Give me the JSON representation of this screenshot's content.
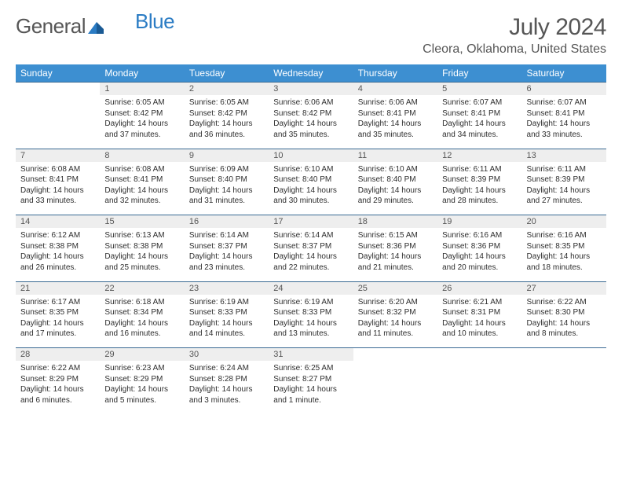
{
  "logo": {
    "text_a": "General",
    "text_b": "Blue"
  },
  "title": "July 2024",
  "location": "Cleora, Oklahoma, United States",
  "colors": {
    "header_bg": "#3d8fd1",
    "header_fg": "#ffffff",
    "daynum_bg": "#eeeeee",
    "rule": "#3a6a93",
    "text": "#2e2e2e",
    "muted": "#565656"
  },
  "weekdays": [
    "Sunday",
    "Monday",
    "Tuesday",
    "Wednesday",
    "Thursday",
    "Friday",
    "Saturday"
  ],
  "layout": {
    "first_weekday_index": 1,
    "days_in_month": 31,
    "rows": 5,
    "cols": 7
  },
  "data": [
    {
      "d": 1,
      "sr": "6:05 AM",
      "ss": "8:42 PM",
      "dl": "14 hours and 37 minutes."
    },
    {
      "d": 2,
      "sr": "6:05 AM",
      "ss": "8:42 PM",
      "dl": "14 hours and 36 minutes."
    },
    {
      "d": 3,
      "sr": "6:06 AM",
      "ss": "8:42 PM",
      "dl": "14 hours and 35 minutes."
    },
    {
      "d": 4,
      "sr": "6:06 AM",
      "ss": "8:41 PM",
      "dl": "14 hours and 35 minutes."
    },
    {
      "d": 5,
      "sr": "6:07 AM",
      "ss": "8:41 PM",
      "dl": "14 hours and 34 minutes."
    },
    {
      "d": 6,
      "sr": "6:07 AM",
      "ss": "8:41 PM",
      "dl": "14 hours and 33 minutes."
    },
    {
      "d": 7,
      "sr": "6:08 AM",
      "ss": "8:41 PM",
      "dl": "14 hours and 33 minutes."
    },
    {
      "d": 8,
      "sr": "6:08 AM",
      "ss": "8:41 PM",
      "dl": "14 hours and 32 minutes."
    },
    {
      "d": 9,
      "sr": "6:09 AM",
      "ss": "8:40 PM",
      "dl": "14 hours and 31 minutes."
    },
    {
      "d": 10,
      "sr": "6:10 AM",
      "ss": "8:40 PM",
      "dl": "14 hours and 30 minutes."
    },
    {
      "d": 11,
      "sr": "6:10 AM",
      "ss": "8:40 PM",
      "dl": "14 hours and 29 minutes."
    },
    {
      "d": 12,
      "sr": "6:11 AM",
      "ss": "8:39 PM",
      "dl": "14 hours and 28 minutes."
    },
    {
      "d": 13,
      "sr": "6:11 AM",
      "ss": "8:39 PM",
      "dl": "14 hours and 27 minutes."
    },
    {
      "d": 14,
      "sr": "6:12 AM",
      "ss": "8:38 PM",
      "dl": "14 hours and 26 minutes."
    },
    {
      "d": 15,
      "sr": "6:13 AM",
      "ss": "8:38 PM",
      "dl": "14 hours and 25 minutes."
    },
    {
      "d": 16,
      "sr": "6:14 AM",
      "ss": "8:37 PM",
      "dl": "14 hours and 23 minutes."
    },
    {
      "d": 17,
      "sr": "6:14 AM",
      "ss": "8:37 PM",
      "dl": "14 hours and 22 minutes."
    },
    {
      "d": 18,
      "sr": "6:15 AM",
      "ss": "8:36 PM",
      "dl": "14 hours and 21 minutes."
    },
    {
      "d": 19,
      "sr": "6:16 AM",
      "ss": "8:36 PM",
      "dl": "14 hours and 20 minutes."
    },
    {
      "d": 20,
      "sr": "6:16 AM",
      "ss": "8:35 PM",
      "dl": "14 hours and 18 minutes."
    },
    {
      "d": 21,
      "sr": "6:17 AM",
      "ss": "8:35 PM",
      "dl": "14 hours and 17 minutes."
    },
    {
      "d": 22,
      "sr": "6:18 AM",
      "ss": "8:34 PM",
      "dl": "14 hours and 16 minutes."
    },
    {
      "d": 23,
      "sr": "6:19 AM",
      "ss": "8:33 PM",
      "dl": "14 hours and 14 minutes."
    },
    {
      "d": 24,
      "sr": "6:19 AM",
      "ss": "8:33 PM",
      "dl": "14 hours and 13 minutes."
    },
    {
      "d": 25,
      "sr": "6:20 AM",
      "ss": "8:32 PM",
      "dl": "14 hours and 11 minutes."
    },
    {
      "d": 26,
      "sr": "6:21 AM",
      "ss": "8:31 PM",
      "dl": "14 hours and 10 minutes."
    },
    {
      "d": 27,
      "sr": "6:22 AM",
      "ss": "8:30 PM",
      "dl": "14 hours and 8 minutes."
    },
    {
      "d": 28,
      "sr": "6:22 AM",
      "ss": "8:29 PM",
      "dl": "14 hours and 6 minutes."
    },
    {
      "d": 29,
      "sr": "6:23 AM",
      "ss": "8:29 PM",
      "dl": "14 hours and 5 minutes."
    },
    {
      "d": 30,
      "sr": "6:24 AM",
      "ss": "8:28 PM",
      "dl": "14 hours and 3 minutes."
    },
    {
      "d": 31,
      "sr": "6:25 AM",
      "ss": "8:27 PM",
      "dl": "14 hours and 1 minute."
    }
  ],
  "labels": {
    "sunrise": "Sunrise:",
    "sunset": "Sunset:",
    "daylight": "Daylight:"
  }
}
